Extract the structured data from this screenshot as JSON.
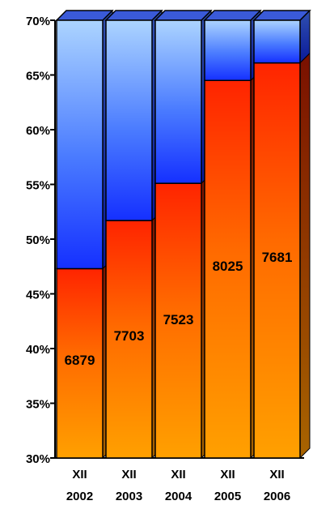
{
  "chart_data": {
    "type": "bar",
    "stacked": true,
    "three_d": true,
    "categories": [
      [
        "XII",
        "2002"
      ],
      [
        "XII",
        "2003"
      ],
      [
        "XII",
        "2004"
      ],
      [
        "XII",
        "2005"
      ],
      [
        "XII",
        "2006"
      ]
    ],
    "series": [
      {
        "color_bottom": "#ff9900",
        "color_top": "#ff2a00",
        "values_percent": [
          47.3,
          51.7,
          55.1,
          64.5,
          66.1
        ],
        "data_labels": [
          "6879",
          "7703",
          "7523",
          "8025",
          "7681"
        ]
      },
      {
        "color_bottom": "#1a3cff",
        "color_top": "#a8d0ff",
        "values_percent": [
          22.7,
          18.3,
          14.9,
          5.5,
          3.9
        ]
      }
    ],
    "ylim": [
      30,
      70
    ],
    "yticks": [
      "30%",
      "35%",
      "40%",
      "45%",
      "50%",
      "55%",
      "60%",
      "65%",
      "70%"
    ],
    "grid": false,
    "legend": "none",
    "colors": {
      "side_orange": "#8a4a00",
      "side_blue": "#0b1a7a",
      "top_face": "#3a5ad8",
      "axis": "#000000"
    }
  }
}
